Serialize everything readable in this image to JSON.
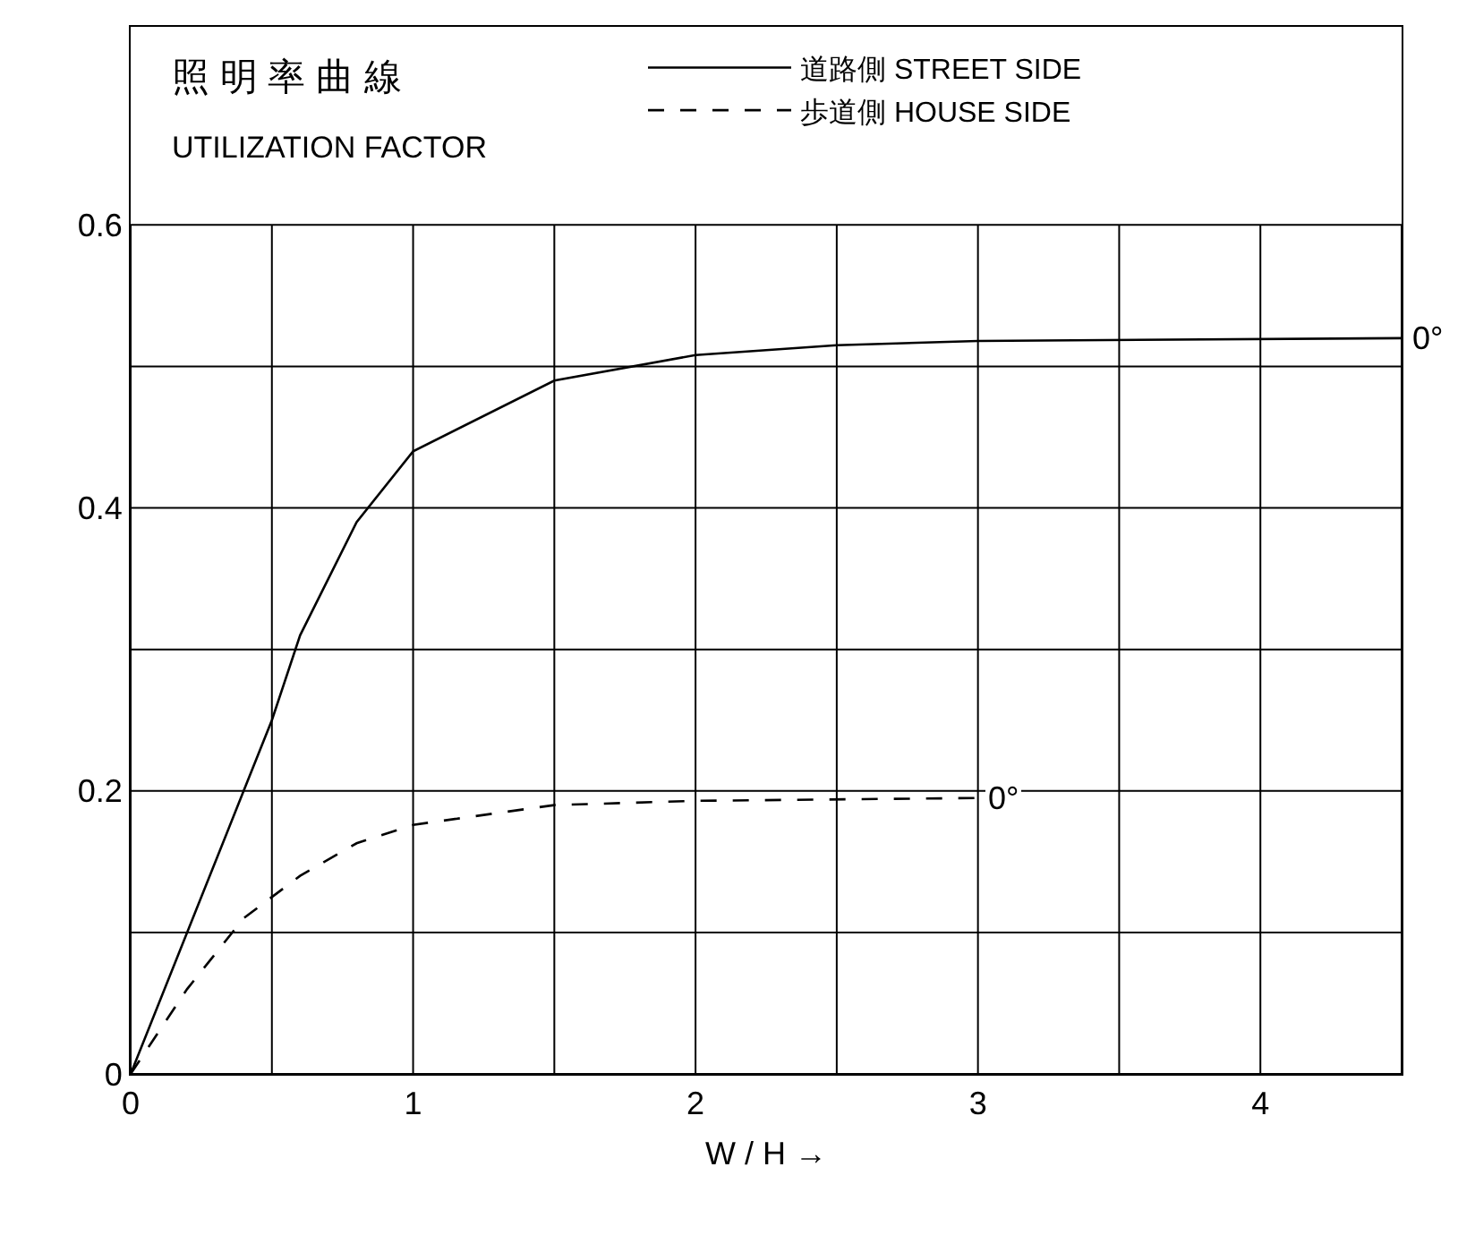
{
  "chart_data": {
    "type": "line",
    "title": "照 明 率 曲 線",
    "subtitle": "UTILIZATION FACTOR",
    "xlabel": "W / H →",
    "series": [
      {
        "name": "道路側 STREET SIDE",
        "color": "#000000",
        "line_style": "solid",
        "x": [
          0,
          0.4,
          0.5,
          0.6,
          0.8,
          1,
          1.5,
          2,
          2.5,
          3,
          4.5
        ],
        "values": [
          0,
          0.2,
          0.25,
          0.31,
          0.39,
          0.44,
          0.49,
          0.508,
          0.515,
          0.518,
          0.52
        ]
      },
      {
        "name": "歩道側 HOUSE SIDE",
        "color": "#000000",
        "line_style": "dashed",
        "x": [
          0,
          0.2,
          0.4,
          0.6,
          0.8,
          1,
          1.5,
          2,
          3
        ],
        "values": [
          0,
          0.06,
          0.11,
          0.14,
          0.163,
          0.176,
          0.19,
          0.193,
          0.195
        ]
      }
    ],
    "annotations": [
      {
        "text": "0°",
        "x": 4.5,
        "y": 0.52
      },
      {
        "text": "0°",
        "x": 3,
        "y": 0.195
      }
    ],
    "xlim": [
      0,
      4.5
    ],
    "xticks": [
      0,
      {
        "value": 0.5,
        "label": null
      },
      1,
      {
        "value": 1.5,
        "label": null
      },
      2,
      {
        "value": 2.5,
        "label": null
      },
      3,
      {
        "value": 3.5,
        "label": null
      },
      4,
      {
        "value": 4.5,
        "label": null
      }
    ],
    "ylim": [
      0,
      0.74
    ],
    "yticks": [
      0,
      {
        "value": 0.1,
        "label": null
      },
      0.2,
      {
        "value": 0.3,
        "label": null
      },
      0.4,
      {
        "value": 0.5,
        "label": null
      },
      0.6
    ],
    "grid": true,
    "legend": "top right",
    "marker": "none"
  }
}
